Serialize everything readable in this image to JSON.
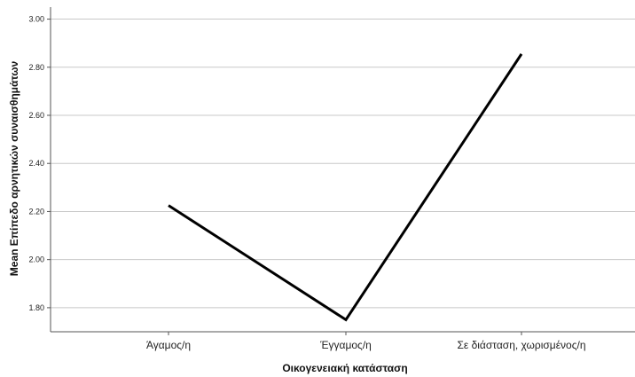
{
  "chart_data": {
    "type": "line",
    "categories": [
      "Άγαμος/η",
      "Έγγαμος/η",
      "Σε διάσταση, χωρισμένος/η"
    ],
    "series": [
      {
        "values": [
          2.225,
          1.75,
          2.855
        ]
      }
    ],
    "xlabel": "Οικογενειακή κατάσταση",
    "ylabel": "Mean Επίπεδο αρνητικών συναισθημάτων",
    "ylim": [
      1.7,
      3.05
    ],
    "yticks": [
      1.8,
      2.0,
      2.2,
      2.4,
      2.6,
      2.8,
      3.0
    ],
    "ytick_labels": [
      "1.80",
      "2.00",
      "2.20",
      "2.40",
      "2.60",
      "2.80",
      "3.00"
    ],
    "grid": true,
    "line_color": "#000000",
    "grid_color": "#c8c8c8"
  }
}
